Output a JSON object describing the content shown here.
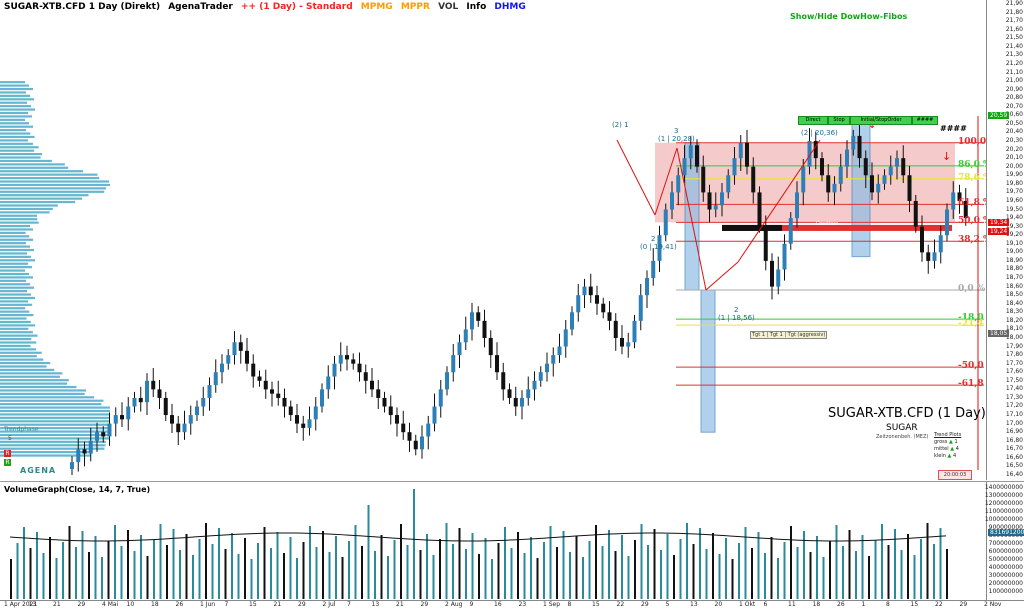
{
  "header": {
    "symbol": "SUGAR-XTB.CFD 1 Day (Direkt)",
    "app": "AgenaTrader",
    "timeframe": "++ (1 Day) - Standard",
    "ind_mpmg": "MPMG",
    "ind_mppr": "MPPR",
    "ind_vol": "VOL",
    "ind_info": "Info",
    "ind_dhmg": "DHMG",
    "colors": {
      "timeframe": "#ff2020",
      "mpmg": "#ff9a00",
      "mppr": "#ff9a00",
      "dhmg": "#1010ff"
    }
  },
  "toggle_label": "Show/Hide DowHow-Fibos",
  "watermark": {
    "title": "SUGAR-XTB.CFD (1 Day)",
    "subtitle": "SUGAR",
    "small": "Zeitzonenbeh. (MEZ)"
  },
  "trend_box": {
    "title": "Trend Plots",
    "rows": [
      "gross",
      "mittel",
      "klein"
    ],
    "values": [
      "1",
      "4",
      "4"
    ]
  },
  "fib_levels": [
    {
      "label": "100,0 %",
      "price": 20.28,
      "color": "#e03030"
    },
    {
      "label": "86,0 %",
      "price": 20.01,
      "color": "#33cc33"
    },
    {
      "label": "78,6 %",
      "price": 19.86,
      "color": "#e6e633"
    },
    {
      "label": "61,8 %",
      "price": 19.56,
      "color": "#e03030"
    },
    {
      "label": "50,0 %",
      "price": 19.35,
      "color": "#e03030"
    },
    {
      "label": "38,2 %",
      "price": 19.13,
      "color": "#e03030"
    },
    {
      "label": "0,0 %",
      "price": 18.56,
      "color": "#aaaaaa"
    },
    {
      "label": "-18,0 %",
      "price": 18.22,
      "color": "#33cc33"
    },
    {
      "label": "-21,4 %",
      "price": 18.15,
      "color": "#e6e633"
    },
    {
      "label": "-50,0 %",
      "price": 17.66,
      "color": "#e03030"
    },
    {
      "label": "-61,8 %",
      "price": 17.45,
      "color": "#e03030"
    }
  ],
  "price_tags": [
    {
      "text": "20,59",
      "price": 20.59,
      "color": "#11a611"
    },
    {
      "text": "19,34",
      "price": 19.34,
      "color": "#e01010"
    },
    {
      "text": "19,24",
      "price": 19.24,
      "color": "#e01010"
    },
    {
      "text": "18,05",
      "price": 18.05,
      "color": "#666666"
    }
  ],
  "vol_tag": "831691200",
  "wave_labels": [
    {
      "text": "(2) 1",
      "x": 612,
      "y": 121
    },
    {
      "text": "3",
      "x": 674,
      "y": 127
    },
    {
      "text": "(1 | 20,28)",
      "x": 658,
      "y": 135
    },
    {
      "text": "(2 | 20,36)",
      "x": 801,
      "y": 129
    },
    {
      "text": "2",
      "x": 651,
      "y": 235
    },
    {
      "text": "(0 | 19,41)",
      "x": 640,
      "y": 243
    },
    {
      "text": "2",
      "x": 734,
      "y": 306
    },
    {
      "text": "(1 | 18,56)",
      "x": 718,
      "y": 314
    }
  ],
  "buttons": [
    "Direct",
    "Stop",
    "Initial/StopOrder",
    "####"
  ],
  "hash_label": "####",
  "dowhow_label": "DowHow",
  "target_label": "Tgt 1 | Tgt 1 | Tgt (aggressiv)",
  "trendphase_label": "Trendphase",
  "trendphase_value": "5",
  "logo_text": "AGENA",
  "countdown": "20:00:03",
  "vol_title": "VolumeGraph(Close, 14, 7, True)",
  "price_axis": [
    "21,90",
    "21,80",
    "21,70",
    "21,60",
    "21,50",
    "21,40",
    "21,30",
    "21,20",
    "21,10",
    "21,00",
    "20,90",
    "20,80",
    "20,70",
    "20,60",
    "20,50",
    "20,40",
    "20,30",
    "20,20",
    "20,10",
    "20,00",
    "19,90",
    "19,80",
    "19,70",
    "19,60",
    "19,50",
    "19,40",
    "19,30",
    "19,20",
    "19,10",
    "19,00",
    "18,90",
    "18,80",
    "18,70",
    "18,60",
    "18,50",
    "18,40",
    "18,30",
    "18,20",
    "18,10",
    "18,00",
    "17,90",
    "17,80",
    "17,70",
    "17,60",
    "17,50",
    "17,40",
    "17,30",
    "17,20",
    "17,10",
    "17,00",
    "16,90",
    "16,80",
    "16,70",
    "16,60",
    "16,50",
    "16,40"
  ],
  "vol_axis": [
    "1400000000",
    "1300000000",
    "1200000000",
    "1100000000",
    "1000000000",
    "900000000",
    "800000000",
    "700000000",
    "600000000",
    "500000000",
    "400000000",
    "300000000",
    "200000000",
    "100000000"
  ],
  "date_axis": [
    "1 Apr 2021",
    "13",
    "21",
    "29",
    "4 Mai",
    "10",
    "18",
    "26",
    "1 Jun",
    "7",
    "15",
    "21",
    "29",
    "2 Jul",
    "7",
    "13",
    "21",
    "29",
    "2 Aug",
    "9",
    "16",
    "23",
    "1 Sep",
    "8",
    "15",
    "22",
    "29",
    "5",
    "13",
    "20",
    "1 Okt",
    "6",
    "11",
    "18",
    "26",
    "1",
    "8",
    "15",
    "22",
    "29",
    "2 Nov"
  ],
  "chart_data": {
    "type": "candlestick",
    "symbol": "SUGAR-XTB.CFD",
    "ylim": [
      16.4,
      21.9
    ],
    "candles_close": [
      16.55,
      16.7,
      16.65,
      16.8,
      16.9,
      16.85,
      17.0,
      17.1,
      17.05,
      17.2,
      17.3,
      17.25,
      17.5,
      17.4,
      17.3,
      17.1,
      17.0,
      16.9,
      17.0,
      17.1,
      17.2,
      17.3,
      17.45,
      17.6,
      17.7,
      17.8,
      17.95,
      17.85,
      17.7,
      17.55,
      17.5,
      17.4,
      17.35,
      17.3,
      17.2,
      17.1,
      17.0,
      16.95,
      17.05,
      17.2,
      17.4,
      17.55,
      17.7,
      17.8,
      17.75,
      17.7,
      17.6,
      17.5,
      17.4,
      17.3,
      17.2,
      17.1,
      17.0,
      16.9,
      16.8,
      16.7,
      16.85,
      17.0,
      17.2,
      17.4,
      17.6,
      17.8,
      17.95,
      18.1,
      18.3,
      18.2,
      18.0,
      17.8,
      17.6,
      17.4,
      17.3,
      17.2,
      17.3,
      17.4,
      17.5,
      17.6,
      17.7,
      17.8,
      17.9,
      18.1,
      18.3,
      18.5,
      18.6,
      18.5,
      18.4,
      18.3,
      18.2,
      18.0,
      17.9,
      17.95,
      18.2,
      18.5,
      18.7,
      18.9,
      19.2,
      19.5,
      19.7,
      19.9,
      20.1,
      20.25,
      20.0,
      19.7,
      19.5,
      19.55,
      19.7,
      19.9,
      20.1,
      20.28,
      20.0,
      19.7,
      19.3,
      18.9,
      18.6,
      18.8,
      19.1,
      19.4,
      19.7,
      20.0,
      20.3,
      20.1,
      19.9,
      19.7,
      19.8,
      20.0,
      20.2,
      20.36,
      20.1,
      19.9,
      19.7,
      19.8,
      19.9,
      20.0,
      20.1,
      19.9,
      19.6,
      19.3,
      19.0,
      18.9,
      19.0,
      19.2,
      19.5,
      19.7,
      19.6,
      19.4
    ],
    "volume_average_line": true
  }
}
